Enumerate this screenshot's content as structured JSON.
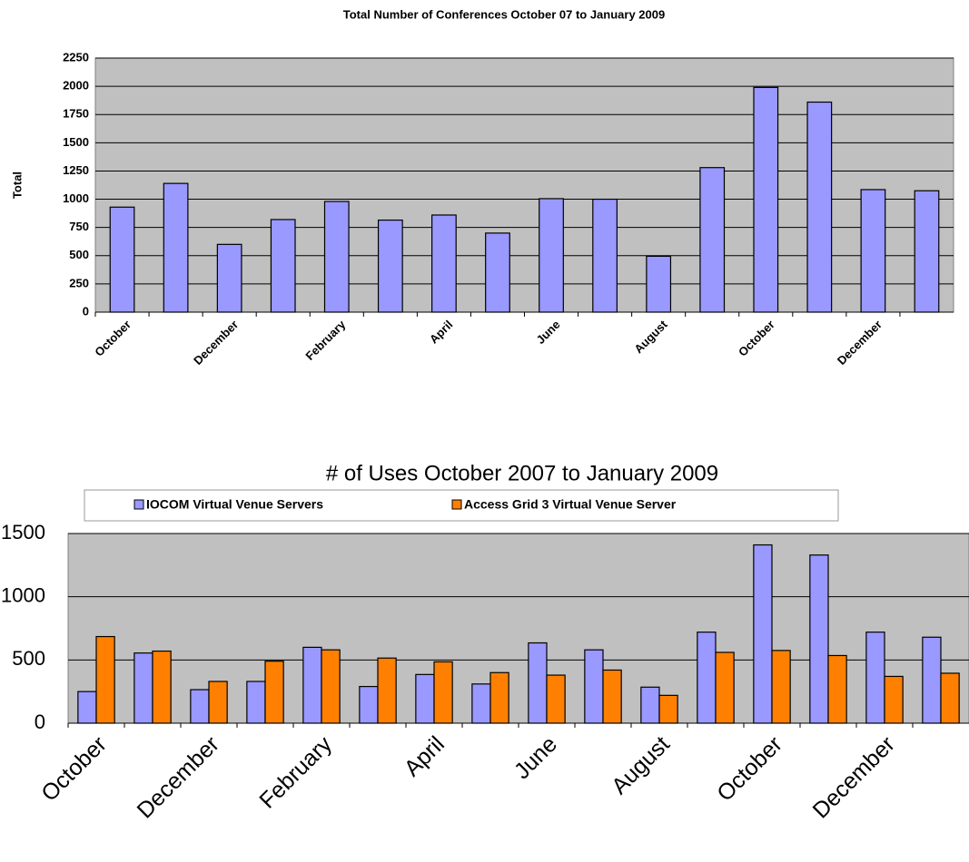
{
  "chart_data": [
    {
      "type": "bar",
      "title": "Total Number of Conferences October 07 to January 2009",
      "y_label": "Total",
      "categories": [
        "October",
        null,
        "December",
        null,
        "February",
        null,
        "April",
        null,
        "June",
        null,
        "August",
        null,
        "October",
        null,
        "December",
        null
      ],
      "values": [
        930,
        1140,
        600,
        820,
        980,
        815,
        860,
        700,
        1005,
        1000,
        495,
        1280,
        1990,
        1860,
        1085,
        1075
      ],
      "color": "#9999ff",
      "ylim": [
        0,
        2250
      ],
      "yticks": [
        0,
        250,
        500,
        750,
        1000,
        1250,
        1500,
        1750,
        2000,
        2250
      ],
      "grid": true
    },
    {
      "type": "bar",
      "title": "# of Uses October 2007 to January 2009",
      "categories": [
        "October",
        null,
        "December",
        null,
        "February",
        null,
        "April",
        null,
        "June",
        null,
        "August",
        null,
        "October",
        null,
        "December",
        null
      ],
      "series": [
        {
          "name": "IOCOM Virtual Venue Servers",
          "color": "#9999ff",
          "values": [
            250,
            555,
            265,
            330,
            600,
            290,
            385,
            310,
            635,
            580,
            285,
            720,
            1410,
            1330,
            720,
            680
          ]
        },
        {
          "name": "Access Grid 3 Virtual Venue Server",
          "color": "#ff8000",
          "values": [
            685,
            570,
            330,
            490,
            580,
            515,
            485,
            400,
            380,
            420,
            220,
            560,
            575,
            535,
            370,
            395
          ]
        }
      ],
      "ylim": [
        0,
        1500
      ],
      "yticks": [
        0,
        500,
        1000,
        1500
      ],
      "grid": true,
      "legend": "top"
    }
  ]
}
